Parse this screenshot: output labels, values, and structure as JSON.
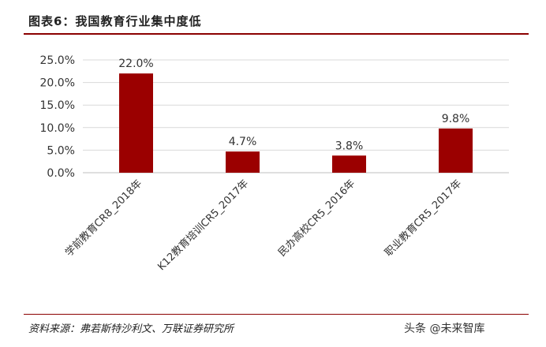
{
  "header": {
    "title": "图表6：我国教育行业集中度低"
  },
  "footer": {
    "source": "资料来源：弗若斯特沙利文、万联证券研究所"
  },
  "watermark": "头条 @未来智库",
  "colors": {
    "bar": "#9b0000",
    "accent": "#8b0000",
    "grid": "#d9d9d9"
  },
  "chart_data": {
    "type": "bar",
    "title": "图表6：我国教育行业集中度低",
    "categories": [
      "学前教育CR8_2018年",
      "K12教育培训CR5_2017年",
      "民办高校CR5_2016年",
      "职业教育CR5_2017年"
    ],
    "values": [
      22.0,
      4.7,
      3.8,
      9.8
    ],
    "data_labels": [
      "22.0%",
      "4.7%",
      "3.8%",
      "9.8%"
    ],
    "yticks": [
      0,
      5,
      10,
      15,
      20,
      25
    ],
    "ytick_labels": [
      "0.0%",
      "5.0%",
      "10.0%",
      "15.0%",
      "20.0%",
      "25.0%"
    ],
    "ylim": [
      0,
      25
    ],
    "grid": true,
    "legend": "none"
  }
}
